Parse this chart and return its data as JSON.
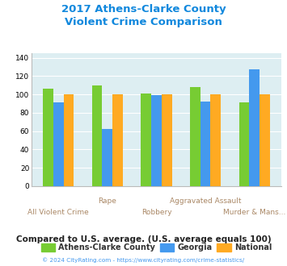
{
  "title_line1": "2017 Athens-Clarke County",
  "title_line2": "Violent Crime Comparison",
  "categories": [
    "All Violent Crime",
    "Rape",
    "Robbery",
    "Aggravated Assault",
    "Murder & Mans..."
  ],
  "cat_labels_top": [
    "",
    "Rape",
    "",
    "Aggravated Assault",
    ""
  ],
  "cat_labels_bot": [
    "All Violent Crime",
    "",
    "Robbery",
    "",
    "Murder & Mans..."
  ],
  "athens_values": [
    106,
    110,
    101,
    108,
    91
  ],
  "georgia_values": [
    91,
    62,
    99,
    92,
    127
  ],
  "national_values": [
    100,
    100,
    100,
    100,
    100
  ],
  "athens_color": "#77cc33",
  "georgia_color": "#4499ee",
  "national_color": "#ffaa22",
  "bg_color": "#ddeef2",
  "ylim": [
    0,
    145
  ],
  "yticks": [
    0,
    20,
    40,
    60,
    80,
    100,
    120,
    140
  ],
  "title_color": "#1188dd",
  "xlabel_color": "#aa8866",
  "footer_text": "© 2024 CityRating.com - https://www.cityrating.com/crime-statistics/",
  "note_text": "Compared to U.S. average. (U.S. average equals 100)",
  "note_color": "#222222",
  "footer_color": "#4499ee",
  "legend_label_color": "#333333",
  "legend_labels": [
    "Athens-Clarke County",
    "Georgia",
    "National"
  ]
}
